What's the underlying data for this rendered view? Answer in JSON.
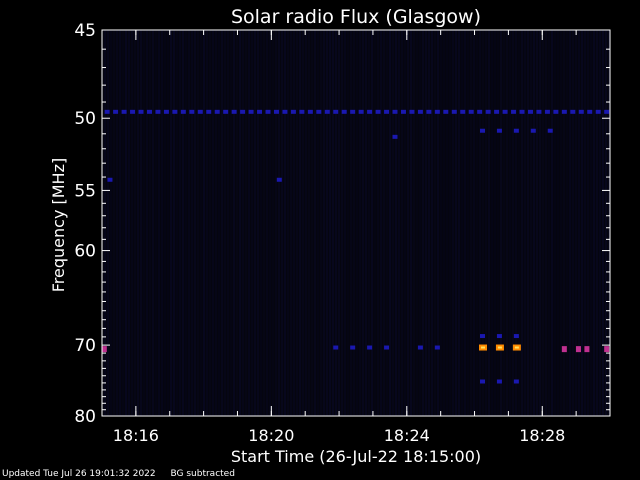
{
  "chart_data": {
    "type": "heatmap",
    "title": "Solar radio Flux (Glasgow)",
    "xlabel": "Start Time (26-Jul-22 18:15:00)",
    "ylabel": "Frequency [MHz]",
    "x_range": [
      "18:15:00",
      "18:30:00"
    ],
    "x_ticks": [
      "18:16",
      "18:20",
      "18:24",
      "18:28"
    ],
    "y_range": [
      45,
      80
    ],
    "y_ticks": [
      45,
      50,
      55,
      60,
      70,
      80
    ],
    "y_scale": "reciprocal",
    "colors": {
      "background": "#000000",
      "plot_bg": "#05050f",
      "low": "#1a18b0",
      "mid": "#c03090",
      "high": "#ff8a00"
    },
    "features": [
      {
        "freq": 49.6,
        "times": [
          "18:15:10",
          "18:15:25",
          "18:15:40",
          "18:15:55",
          "18:16:10",
          "18:16:25",
          "18:16:40",
          "18:16:55",
          "18:17:10",
          "18:17:25",
          "18:17:40",
          "18:17:55",
          "18:18:10",
          "18:18:25",
          "18:18:40",
          "18:18:55",
          "18:19:10",
          "18:19:25",
          "18:19:40",
          "18:19:55",
          "18:20:10",
          "18:20:25",
          "18:20:40",
          "18:20:55",
          "18:21:10",
          "18:21:25",
          "18:21:40",
          "18:21:55",
          "18:22:10",
          "18:22:25",
          "18:22:40",
          "18:22:55",
          "18:23:10",
          "18:23:25",
          "18:23:40",
          "18:23:55",
          "18:24:10",
          "18:24:25",
          "18:24:40",
          "18:24:55",
          "18:25:10",
          "18:25:25",
          "18:25:40",
          "18:25:55",
          "18:26:10",
          "18:26:25",
          "18:26:40",
          "18:26:55",
          "18:27:10",
          "18:27:25",
          "18:27:40",
          "18:27:55",
          "18:28:10",
          "18:28:25",
          "18:28:40",
          "18:28:55",
          "18:29:10",
          "18:29:25",
          "18:29:40",
          "18:29:55"
        ],
        "level": "low"
      },
      {
        "freq": 50.8,
        "times": [
          "18:26:15",
          "18:26:45",
          "18:27:15",
          "18:27:45",
          "18:28:15"
        ],
        "level": "low"
      },
      {
        "freq": 51.2,
        "times": [
          "18:23:40"
        ],
        "level": "low"
      },
      {
        "freq": 54.2,
        "times": [
          "18:15:15",
          "18:20:15"
        ],
        "level": "low"
      },
      {
        "freq": 68.9,
        "times": [
          "18:26:15",
          "18:26:45",
          "18:27:15"
        ],
        "level": "low"
      },
      {
        "freq": 70.3,
        "times": [
          "18:21:55",
          "18:22:25",
          "18:22:55",
          "18:23:25",
          "18:24:25",
          "18:24:55"
        ],
        "level": "low"
      },
      {
        "freq": 70.3,
        "times": [
          "18:26:15",
          "18:26:45",
          "18:27:15"
        ],
        "level": "high"
      },
      {
        "freq": 70.5,
        "times": [
          "18:15:05",
          "18:28:40",
          "18:29:05",
          "18:29:20",
          "18:29:55"
        ],
        "level": "mid"
      },
      {
        "freq": 74.8,
        "times": [
          "18:26:15",
          "18:26:45",
          "18:27:15"
        ],
        "level": "low"
      }
    ]
  },
  "footer": {
    "updated": "Updated Tue Jul 26 19:01:32 2022",
    "note": "BG subtracted"
  }
}
